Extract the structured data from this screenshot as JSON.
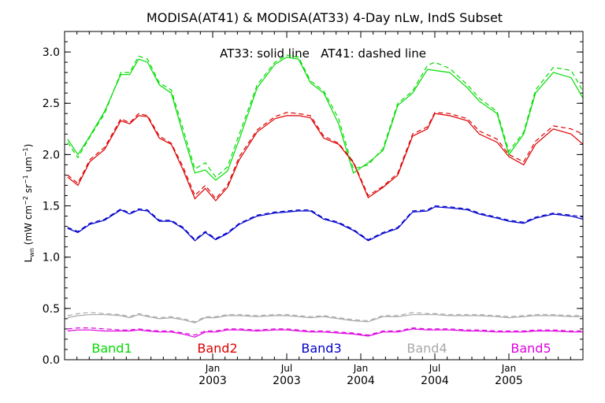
{
  "chart_data": {
    "type": "line",
    "title": "MODISA(AT41) & MODISA(AT33) 4-Day nLw, IndS Subset",
    "annotation": "AT33: solid line   AT41: dashed line",
    "ylabel": "Lwn (mW cm-2 sr-1 um-1)",
    "ylabel_parts": {
      "main": "L",
      "sub": "wn",
      "open": " (mW cm",
      "e1": "−2",
      "mid1": " sr",
      "e2": "−1",
      "mid2": " um",
      "e3": "−1",
      "close": ")"
    },
    "xlim": [
      2002.0,
      2005.5
    ],
    "ylim": [
      0,
      3.2
    ],
    "yticks": [
      0.0,
      0.5,
      1.0,
      1.5,
      2.0,
      2.5,
      3.0
    ],
    "ytick_labels": [
      "0.0",
      "0.5",
      "1.0",
      "1.5",
      "2.0",
      "2.5",
      "3.0"
    ],
    "xticks": [
      {
        "pos": 2003.0,
        "month": "Jan",
        "year": "2003"
      },
      {
        "pos": 2003.5,
        "month": "Jul",
        "year": "2003"
      },
      {
        "pos": 2004.0,
        "month": "Jan",
        "year": "2004"
      },
      {
        "pos": 2004.5,
        "month": "Jul",
        "year": "2004"
      },
      {
        "pos": 2005.0,
        "month": "Jan",
        "year": "2005"
      }
    ],
    "x": [
      2002.02,
      2002.09,
      2002.17,
      2002.27,
      2002.38,
      2002.44,
      2002.5,
      2002.56,
      2002.64,
      2002.72,
      2002.8,
      2002.88,
      2002.95,
      2003.02,
      2003.1,
      2003.18,
      2003.3,
      2003.42,
      2003.5,
      2003.58,
      2003.66,
      2003.75,
      2003.85,
      2003.95,
      2004.05,
      2004.15,
      2004.25,
      2004.35,
      2004.45,
      2004.5,
      2004.6,
      2004.72,
      2004.8,
      2004.92,
      2005.0,
      2005.1,
      2005.18,
      2005.3,
      2005.42,
      2005.5
    ],
    "series": [
      {
        "name": "Band1",
        "color": "#00dd00",
        "at33": [
          2.15,
          2.0,
          2.18,
          2.42,
          2.78,
          2.78,
          2.93,
          2.9,
          2.68,
          2.6,
          2.2,
          1.82,
          1.85,
          1.75,
          1.84,
          2.15,
          2.65,
          2.88,
          2.95,
          2.93,
          2.7,
          2.6,
          2.3,
          1.82,
          1.92,
          2.04,
          2.48,
          2.6,
          2.83,
          2.82,
          2.8,
          2.65,
          2.52,
          2.4,
          2.0,
          2.2,
          2.6,
          2.8,
          2.75,
          2.55
        ],
        "at41": [
          2.12,
          1.97,
          2.17,
          2.4,
          2.8,
          2.8,
          2.96,
          2.93,
          2.7,
          2.63,
          2.25,
          1.86,
          1.92,
          1.78,
          1.88,
          2.2,
          2.68,
          2.9,
          2.97,
          2.95,
          2.72,
          2.62,
          2.35,
          1.86,
          1.9,
          2.06,
          2.5,
          2.62,
          2.87,
          2.9,
          2.84,
          2.68,
          2.55,
          2.42,
          2.03,
          2.22,
          2.63,
          2.85,
          2.82,
          2.62
        ]
      },
      {
        "name": "Band2",
        "color": "#dd0000",
        "at33": [
          1.78,
          1.7,
          1.93,
          2.05,
          2.33,
          2.3,
          2.38,
          2.37,
          2.16,
          2.1,
          1.85,
          1.57,
          1.67,
          1.55,
          1.68,
          1.95,
          2.22,
          2.35,
          2.38,
          2.38,
          2.36,
          2.16,
          2.1,
          1.92,
          1.58,
          1.68,
          1.8,
          2.18,
          2.25,
          2.4,
          2.38,
          2.33,
          2.2,
          2.12,
          1.98,
          1.9,
          2.1,
          2.25,
          2.2,
          2.1
        ],
        "at41": [
          1.8,
          1.72,
          1.95,
          2.07,
          2.35,
          2.31,
          2.4,
          2.38,
          2.18,
          2.11,
          1.88,
          1.6,
          1.7,
          1.57,
          1.7,
          1.98,
          2.24,
          2.37,
          2.41,
          2.4,
          2.38,
          2.18,
          2.11,
          1.93,
          1.6,
          1.69,
          1.82,
          2.2,
          2.27,
          2.41,
          2.4,
          2.35,
          2.23,
          2.15,
          2.0,
          1.93,
          2.13,
          2.28,
          2.25,
          2.2
        ]
      },
      {
        "name": "Band3",
        "color": "#0000cc",
        "at33": [
          1.28,
          1.24,
          1.32,
          1.36,
          1.46,
          1.42,
          1.46,
          1.45,
          1.35,
          1.35,
          1.28,
          1.16,
          1.24,
          1.17,
          1.23,
          1.32,
          1.4,
          1.43,
          1.44,
          1.45,
          1.45,
          1.37,
          1.33,
          1.26,
          1.16,
          1.23,
          1.28,
          1.44,
          1.45,
          1.49,
          1.48,
          1.46,
          1.42,
          1.38,
          1.35,
          1.33,
          1.38,
          1.42,
          1.4,
          1.37
        ],
        "at41": [
          1.29,
          1.25,
          1.33,
          1.37,
          1.47,
          1.43,
          1.47,
          1.46,
          1.36,
          1.36,
          1.29,
          1.17,
          1.25,
          1.18,
          1.24,
          1.33,
          1.41,
          1.44,
          1.45,
          1.46,
          1.46,
          1.38,
          1.34,
          1.27,
          1.17,
          1.24,
          1.29,
          1.45,
          1.46,
          1.5,
          1.49,
          1.47,
          1.43,
          1.39,
          1.36,
          1.34,
          1.39,
          1.43,
          1.41,
          1.39
        ]
      },
      {
        "name": "Band4",
        "color": "#a8a8a8",
        "at33": [
          0.41,
          0.43,
          0.44,
          0.44,
          0.43,
          0.41,
          0.44,
          0.42,
          0.4,
          0.41,
          0.39,
          0.36,
          0.41,
          0.41,
          0.43,
          0.43,
          0.42,
          0.43,
          0.43,
          0.42,
          0.41,
          0.42,
          0.4,
          0.38,
          0.37,
          0.42,
          0.42,
          0.44,
          0.44,
          0.44,
          0.43,
          0.43,
          0.43,
          0.42,
          0.41,
          0.42,
          0.43,
          0.43,
          0.42,
          0.42
        ],
        "at41": [
          0.43,
          0.45,
          0.46,
          0.45,
          0.44,
          0.42,
          0.45,
          0.43,
          0.41,
          0.42,
          0.4,
          0.37,
          0.42,
          0.42,
          0.44,
          0.44,
          0.43,
          0.44,
          0.44,
          0.43,
          0.42,
          0.43,
          0.41,
          0.39,
          0.38,
          0.43,
          0.43,
          0.46,
          0.45,
          0.45,
          0.44,
          0.44,
          0.44,
          0.43,
          0.42,
          0.43,
          0.44,
          0.44,
          0.43,
          0.43
        ]
      },
      {
        "name": "Band5",
        "color": "#dd00dd",
        "at33": [
          0.28,
          0.29,
          0.29,
          0.28,
          0.28,
          0.28,
          0.29,
          0.28,
          0.27,
          0.27,
          0.25,
          0.22,
          0.27,
          0.27,
          0.29,
          0.29,
          0.28,
          0.29,
          0.29,
          0.28,
          0.27,
          0.27,
          0.26,
          0.25,
          0.23,
          0.27,
          0.27,
          0.3,
          0.29,
          0.29,
          0.29,
          0.28,
          0.28,
          0.27,
          0.27,
          0.27,
          0.28,
          0.28,
          0.27,
          0.27
        ],
        "at41": [
          0.3,
          0.31,
          0.31,
          0.3,
          0.29,
          0.29,
          0.3,
          0.29,
          0.28,
          0.28,
          0.26,
          0.24,
          0.28,
          0.28,
          0.3,
          0.3,
          0.29,
          0.3,
          0.3,
          0.29,
          0.28,
          0.28,
          0.27,
          0.26,
          0.24,
          0.28,
          0.28,
          0.31,
          0.3,
          0.3,
          0.3,
          0.29,
          0.29,
          0.28,
          0.28,
          0.28,
          0.29,
          0.29,
          0.28,
          0.28
        ]
      }
    ]
  }
}
